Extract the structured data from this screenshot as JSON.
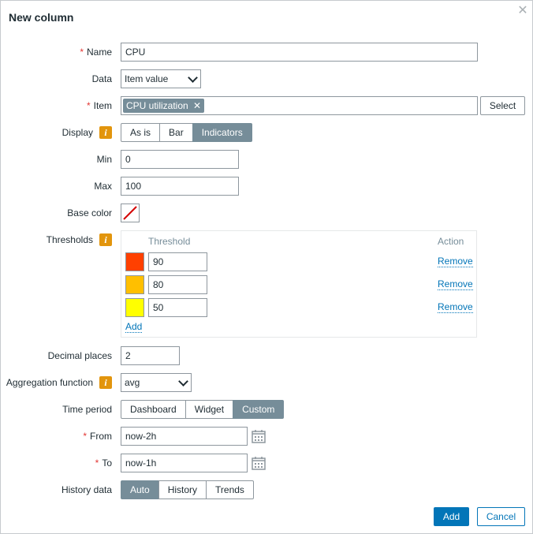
{
  "dialog": {
    "title": "New column",
    "close_label": "✕"
  },
  "labels": {
    "name": "Name",
    "data": "Data",
    "item": "Item",
    "display": "Display",
    "min": "Min",
    "max": "Max",
    "base_color": "Base color",
    "thresholds": "Thresholds",
    "decimal_places": "Decimal places",
    "aggregation_function": "Aggregation function",
    "time_period": "Time period",
    "from": "From",
    "to": "To",
    "history_data": "History data",
    "required_mark": "*",
    "info_mark": "i"
  },
  "fields": {
    "name": "CPU",
    "data": "Item value",
    "item_tag": "CPU utilization",
    "item_tag_remove": "✕",
    "select_button": "Select",
    "display_options": [
      "As is",
      "Bar",
      "Indicators"
    ],
    "display_selected": "Indicators",
    "min": "0",
    "max": "100",
    "decimal_places": "2",
    "aggregation_function": "avg",
    "time_period_options": [
      "Dashboard",
      "Widget",
      "Custom"
    ],
    "time_period_selected": "Custom",
    "from": "now-2h",
    "to": "now-1h",
    "history_options": [
      "Auto",
      "History",
      "Trends"
    ],
    "history_selected": "Auto"
  },
  "thresholds": {
    "header_threshold": "Threshold",
    "header_action": "Action",
    "rows": [
      {
        "color": "#FF4000",
        "value": "90",
        "action": "Remove"
      },
      {
        "color": "#FFBF00",
        "value": "80",
        "action": "Remove"
      },
      {
        "color": "#FFFF00",
        "value": "50",
        "action": "Remove"
      }
    ],
    "add_label": "Add"
  },
  "colors": {
    "accent": "#0275b8",
    "segment_active": "#768d99",
    "required": "#e33734",
    "info": "#e2950d",
    "base_color_none": "#d40000"
  },
  "footer": {
    "add_button": "Add",
    "cancel_button": "Cancel"
  }
}
